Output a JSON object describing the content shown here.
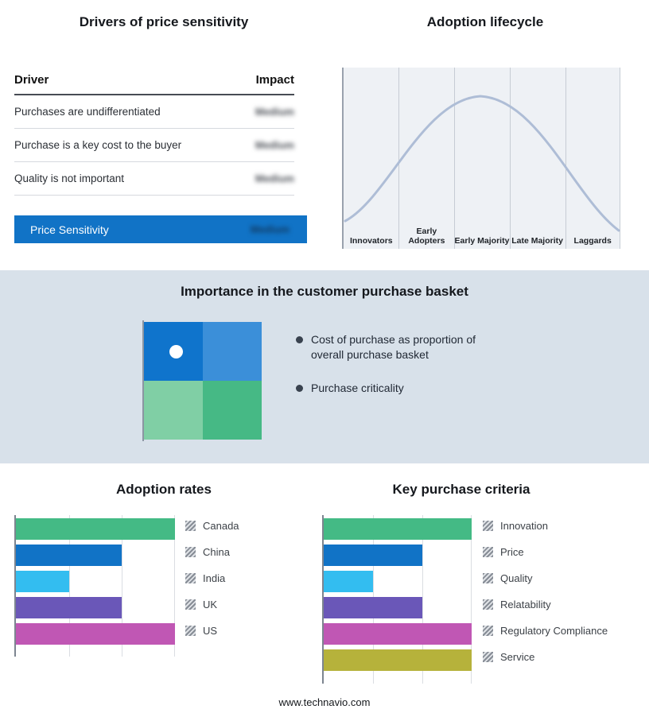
{
  "chart_data": [
    {
      "type": "table",
      "title": "Drivers of price sensitivity",
      "columns": [
        "Driver",
        "Impact"
      ],
      "rows": [
        [
          "Purchases are undifferentiated",
          "Medium"
        ],
        [
          "Purchase is a key cost to the buyer",
          "Medium"
        ],
        [
          "Quality is not important",
          "Medium"
        ]
      ],
      "highlight_row": [
        "Price Sensitivity",
        "Medium"
      ],
      "accent_color": "#1173C6"
    },
    {
      "type": "line",
      "title": "Adoption lifecycle",
      "categories": [
        "Innovators",
        "Early Adopters",
        "Early Majority",
        "Late Majority",
        "Laggards"
      ],
      "description": "Bell-shaped adoption curve rising to a peak at Early Majority and falling through Laggards",
      "curve_color": "#AEBDD6",
      "grid": true,
      "legend_position": "none"
    },
    {
      "type": "bar",
      "title": "Adoption rates",
      "orientation": "horizontal",
      "categories": [
        "Canada",
        "China",
        "India",
        "UK",
        "US"
      ],
      "values": [
        3,
        2,
        1,
        2,
        3
      ],
      "xlim": [
        0,
        3
      ],
      "colors": [
        "#44BA85",
        "#1173C6",
        "#33BDF0",
        "#6A57B8",
        "#C057B4"
      ],
      "grid": true,
      "legend_position": "right"
    },
    {
      "type": "bar",
      "title": "Key purchase criteria",
      "orientation": "horizontal",
      "categories": [
        "Innovation",
        "Price",
        "Quality",
        "Relatability",
        "Regulatory Compliance",
        "Service"
      ],
      "values": [
        3,
        2,
        1,
        2,
        3,
        3
      ],
      "xlim": [
        0,
        3
      ],
      "colors": [
        "#44BA85",
        "#1173C6",
        "#33BDF0",
        "#6A57B8",
        "#C057B4",
        "#B6B23B"
      ],
      "grid": true,
      "legend_position": "right"
    }
  ],
  "basket": {
    "title": "Importance in the customer purchase basket",
    "bullets": [
      "Cost of purchase as proportion of overall purchase basket",
      "Purchase criticality"
    ],
    "quadrant_colors": {
      "tl": "#0F74CC",
      "tr": "#3B8FD9",
      "bl": "#80CFA5",
      "br": "#46B985"
    },
    "dot_color": "#FFFFFF"
  },
  "footer": {
    "label": "www.technavio.com"
  }
}
